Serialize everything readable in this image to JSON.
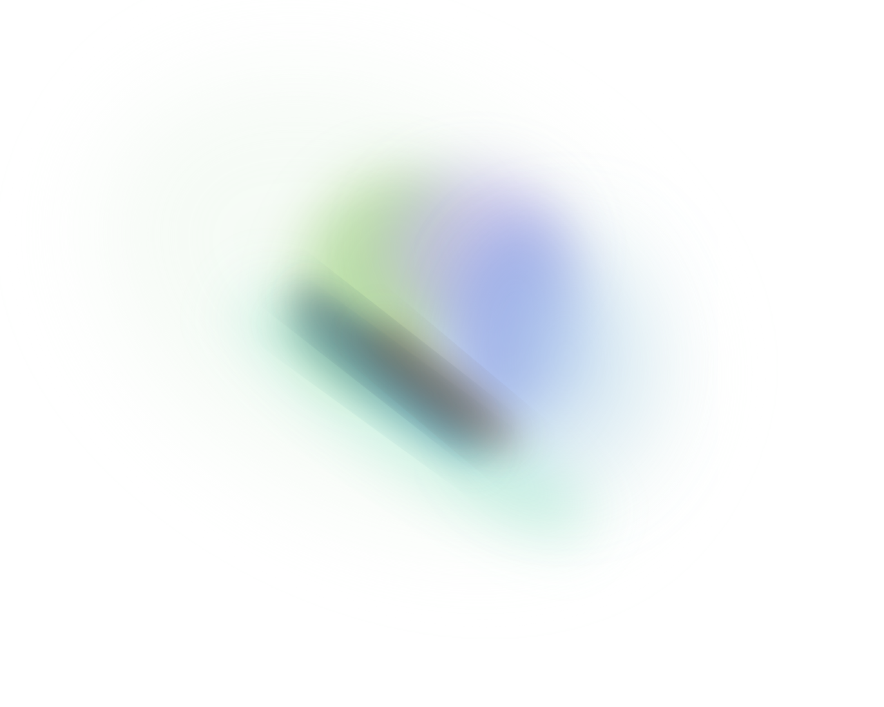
{
  "background_color": "#ffffff",
  "gradient_colors": {
    "outer_haze": "#eef8ee",
    "mint": "#bfeedd",
    "green": "#b6dca0",
    "lavender": "#c2b8e8",
    "blue": "#9aa8e6",
    "sky": "#b6d4f0",
    "slate": "#3a5a74",
    "brown": "#6e5646",
    "teal": "#4a8a9a"
  }
}
